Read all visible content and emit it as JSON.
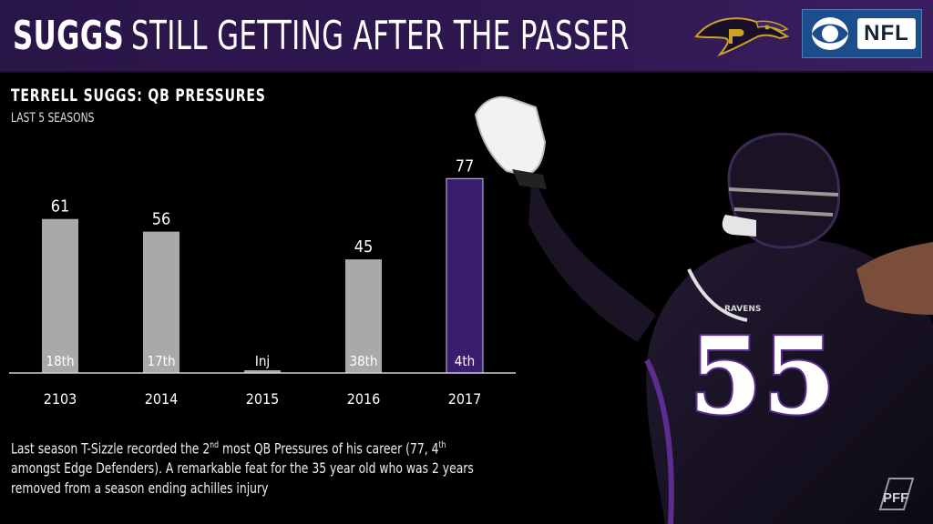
{
  "header": {
    "title_bold": "SUGGS",
    "title_rest": "STILL GETTING AFTER THE PASSER",
    "team_logo_icon": "ravens-logo-icon",
    "network_logo_icon": "cbs-eye-icon",
    "network_label": "NFL"
  },
  "chart_data": {
    "type": "bar",
    "title": "TERRELL SUGGS: QB PRESSURES",
    "subtitle": "LAST 5 SEASONS",
    "categories": [
      "2103",
      "2014",
      "2015",
      "2016",
      "2017"
    ],
    "values": [
      61,
      56,
      1,
      45,
      77
    ],
    "value_labels": [
      "61",
      "56",
      "",
      "45",
      "77"
    ],
    "rank_labels": [
      "18th",
      "17th",
      "Inj",
      "38th",
      "4th"
    ],
    "colors": [
      "#a9a9a9",
      "#a9a9a9",
      "#a9a9a9",
      "#a9a9a9",
      "#3a1d6e"
    ],
    "highlight_color": "#3a1d6e",
    "ylim": [
      0,
      80
    ],
    "xlabel": "",
    "ylabel": "",
    "grid": false,
    "legend": "none"
  },
  "caption": {
    "p1": "Last season T-Sizzle recorded the 2",
    "sup1": "nd",
    "p2": " most QB Pressures of his career (77, 4",
    "sup2": "th",
    "line2": "amongst Edge Defenders). A remarkable feat for the 35 year old who was 2 years",
    "line3": "removed from a season ending achilles injury"
  },
  "player": {
    "jersey_number": "55",
    "jersey_text": "RAVENS"
  },
  "footer": {
    "brand_icon": "pff-logo-icon",
    "brand_label": "PFF"
  }
}
